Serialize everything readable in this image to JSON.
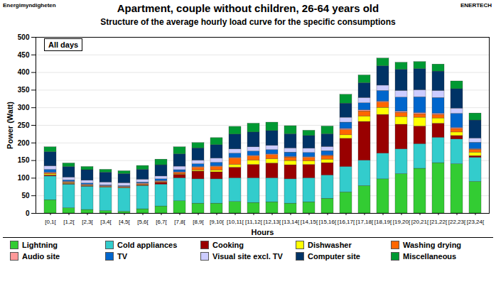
{
  "chart_data": {
    "type": "bar",
    "stacked": true,
    "title": "Apartment, couple without children, 26-64 years old",
    "subtitle": "Structure of the average hourly load curve for the specific consumptions",
    "source": "Energimyndigheten",
    "credit": "ENERTECH",
    "annotation": "All days",
    "x_label": "Hours",
    "y_label": "Power (Watt)",
    "categories": [
      "[0,1[",
      "[1,2[",
      "[2,3[",
      "[3,4[",
      "[4,5[",
      "[5,6[",
      "[6,7[",
      "[7,8[",
      "[8,9[",
      "[9,10[",
      "[10,11[",
      "[11,12[",
      "[12,13[",
      "[13,14[",
      "[14,15[",
      "[15,16[",
      "[16,17[",
      "[17,18[",
      "[18,19[",
      "[19,20[",
      "[20,21[",
      "[21,22[",
      "[22,23[",
      "[23,24["
    ],
    "ylim": [
      0,
      500
    ],
    "yticks": [
      0,
      50,
      100,
      150,
      200,
      250,
      300,
      350,
      400,
      450,
      500
    ],
    "grid": true,
    "legend": "bottom",
    "series": [
      {
        "name": "Lightning",
        "color": "#33cc33",
        "values": [
          38,
          15,
          10,
          7,
          5,
          12,
          20,
          35,
          28,
          28,
          33,
          30,
          32,
          28,
          32,
          42,
          60,
          78,
          97,
          112,
          127,
          143,
          140,
          90
        ]
      },
      {
        "name": "Cold appliances",
        "color": "#33cccc",
        "values": [
          67,
          67,
          66,
          66,
          66,
          66,
          62,
          65,
          69,
          69,
          67,
          70,
          68,
          69,
          68,
          66,
          72,
          72,
          73,
          70,
          70,
          72,
          70,
          68
        ]
      },
      {
        "name": "Cooking",
        "color": "#990000",
        "values": [
          3,
          2,
          1,
          1,
          1,
          2,
          5,
          10,
          22,
          20,
          30,
          38,
          42,
          40,
          38,
          35,
          80,
          110,
          110,
          70,
          50,
          40,
          10,
          5
        ]
      },
      {
        "name": "Dishwasher",
        "color": "#ffff00",
        "values": [
          3,
          2,
          1,
          1,
          1,
          1,
          1,
          1,
          3,
          5,
          8,
          12,
          12,
          12,
          10,
          10,
          10,
          15,
          20,
          22,
          25,
          15,
          10,
          10
        ]
      },
      {
        "name": "Washing drying",
        "color": "#ff6600",
        "values": [
          3,
          2,
          2,
          1,
          1,
          2,
          2,
          4,
          8,
          10,
          18,
          12,
          12,
          10,
          10,
          10,
          15,
          15,
          15,
          12,
          10,
          10,
          10,
          8
        ]
      },
      {
        "name": "Audio site",
        "color": "#ff9999",
        "values": [
          2,
          2,
          2,
          2,
          2,
          2,
          2,
          2,
          2,
          2,
          2,
          2,
          2,
          2,
          2,
          2,
          3,
          3,
          3,
          3,
          3,
          3,
          3,
          2
        ]
      },
      {
        "name": "TV",
        "color": "#0066cc",
        "values": [
          8,
          4,
          3,
          2,
          2,
          3,
          5,
          6,
          8,
          10,
          12,
          12,
          12,
          12,
          12,
          12,
          18,
          20,
          30,
          40,
          45,
          45,
          40,
          18
        ]
      },
      {
        "name": "Visual site excl. TV",
        "color": "#ccccff",
        "values": [
          10,
          8,
          8,
          8,
          8,
          8,
          8,
          10,
          10,
          12,
          12,
          12,
          12,
          12,
          12,
          12,
          14,
          15,
          15,
          19,
          20,
          20,
          15,
          12
        ]
      },
      {
        "name": "Computer site",
        "color": "#003366",
        "values": [
          40,
          30,
          30,
          28,
          26,
          28,
          32,
          35,
          35,
          38,
          42,
          42,
          42,
          40,
          36,
          36,
          40,
          42,
          55,
          60,
          60,
          55,
          55,
          51
        ]
      },
      {
        "name": "Miscellaneous",
        "color": "#009933",
        "values": [
          14,
          10,
          9,
          8,
          8,
          11,
          16,
          20,
          15,
          20,
          22,
          25,
          24,
          23,
          15,
          22,
          25,
          22,
          22,
          20,
          20,
          20,
          22,
          20
        ]
      }
    ]
  }
}
